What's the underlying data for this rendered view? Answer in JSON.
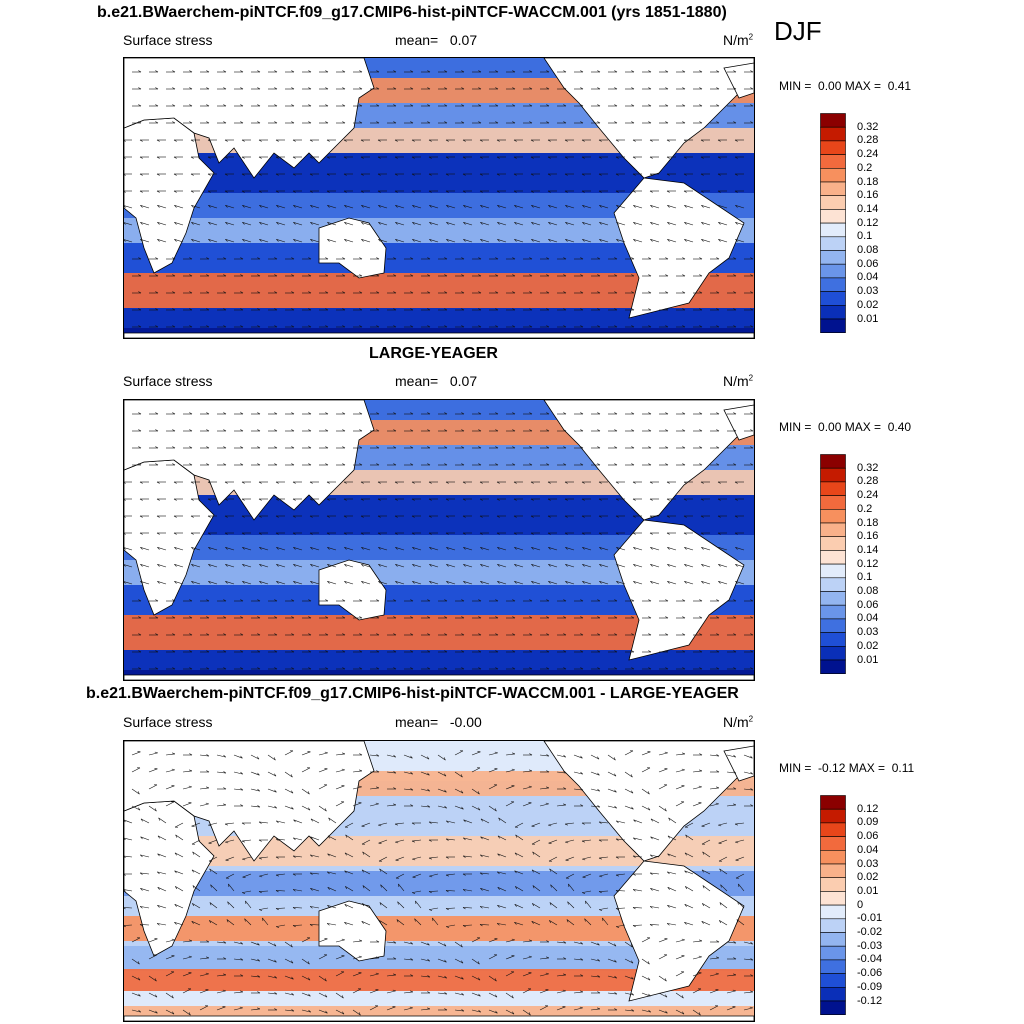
{
  "figure": {
    "season": "DJF",
    "panels": [
      {
        "title": "b.e21.BWaerchem-piNTCF.f09_g17.CMIP6-hist-piNTCF-WACCM.001 (yrs 1851-1880)",
        "variable": "Surface stress",
        "mean_label": "mean=",
        "mean_value": "0.07",
        "units": "N/m",
        "units_exp": "2",
        "min_label": "MIN =",
        "min_value": "0.00",
        "max_label": "MAX =",
        "max_value": "0.41",
        "colorbar_levels": [
          "0.32",
          "0.28",
          "0.24",
          "0.2",
          "0.18",
          "0.16",
          "0.14",
          "0.12",
          "0.1",
          "0.08",
          "0.06",
          "0.04",
          "0.03",
          "0.02",
          "0.01"
        ],
        "colorbar_colors": [
          "#8b0000",
          "#c51b00",
          "#e8461a",
          "#f26a3d",
          "#f7905e",
          "#f9b18a",
          "#fbcdb0",
          "#fde3d4",
          "#e2ecfb",
          "#bcd2f6",
          "#93b5f0",
          "#6a95e9",
          "#3f70e0",
          "#1f4fd6",
          "#0a2fb8",
          "#00128f"
        ]
      },
      {
        "title": "LARGE-YEAGER",
        "variable": "Surface stress",
        "mean_label": "mean=",
        "mean_value": "0.07",
        "units": "N/m",
        "units_exp": "2",
        "min_label": "MIN =",
        "min_value": "0.00",
        "max_label": "MAX =",
        "max_value": "0.40",
        "colorbar_levels": [
          "0.32",
          "0.28",
          "0.24",
          "0.2",
          "0.18",
          "0.16",
          "0.14",
          "0.12",
          "0.1",
          "0.08",
          "0.06",
          "0.04",
          "0.03",
          "0.02",
          "0.01"
        ],
        "colorbar_colors": [
          "#8b0000",
          "#c51b00",
          "#e8461a",
          "#f26a3d",
          "#f7905e",
          "#f9b18a",
          "#fbcdb0",
          "#fde3d4",
          "#e2ecfb",
          "#bcd2f6",
          "#93b5f0",
          "#6a95e9",
          "#3f70e0",
          "#1f4fd6",
          "#0a2fb8",
          "#00128f"
        ]
      },
      {
        "title": "b.e21.BWaerchem-piNTCF.f09_g17.CMIP6-hist-piNTCF-WACCM.001 - LARGE-YEAGER",
        "variable": "Surface stress",
        "mean_label": "mean=",
        "mean_value": "-0.00",
        "units": "N/m",
        "units_exp": "2",
        "min_label": "MIN =",
        "min_value": "-0.12",
        "max_label": "MAX =",
        "max_value": "0.11",
        "colorbar_levels": [
          "0.12",
          "0.09",
          "0.06",
          "0.04",
          "0.03",
          "0.02",
          "0.01",
          "0",
          "-0.01",
          "-0.02",
          "-0.03",
          "-0.04",
          "-0.06",
          "-0.09",
          "-0.12"
        ],
        "colorbar_colors": [
          "#8b0000",
          "#c51b00",
          "#e8461a",
          "#f26a3d",
          "#f7905e",
          "#f9b18a",
          "#fbcdb0",
          "#fde3d4",
          "#e2ecfb",
          "#bcd2f6",
          "#93b5f0",
          "#6a95e9",
          "#3f70e0",
          "#1f4fd6",
          "#0a2fb8",
          "#00128f"
        ]
      }
    ]
  }
}
